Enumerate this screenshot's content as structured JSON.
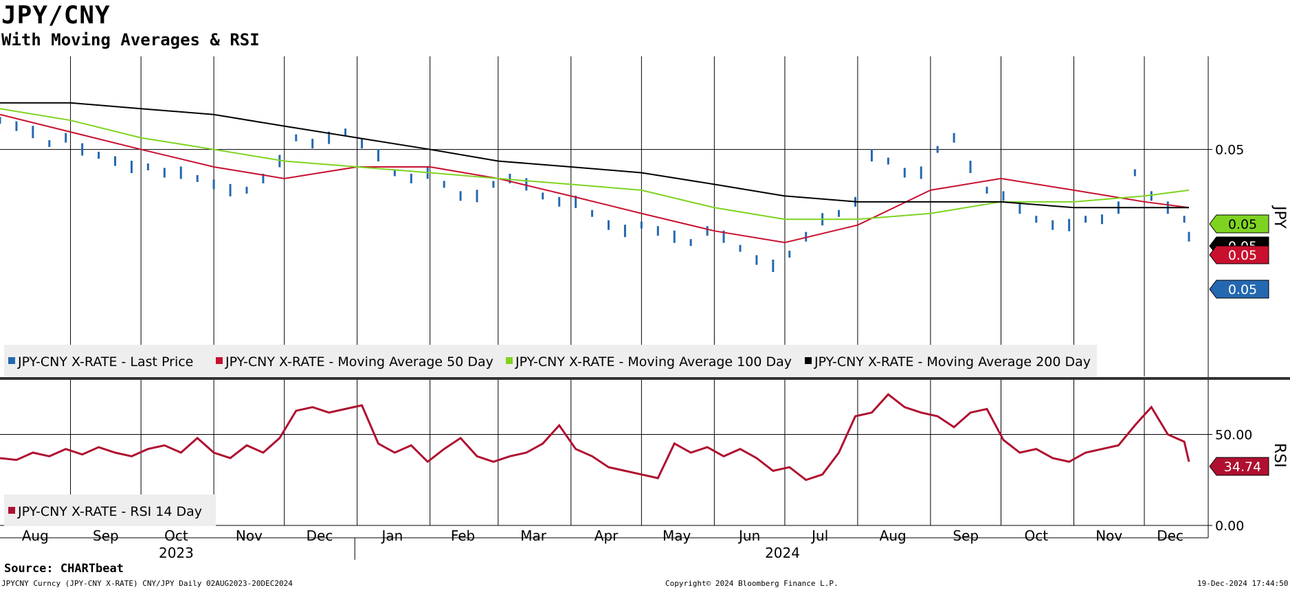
{
  "title": "JPY/CNY",
  "subtitle": "With Moving Averages & RSI",
  "source": "Source: CHARTbeat",
  "footer": {
    "ticker": "JPYCNY Curncy (JPY-CNY X-RATE) CNY/JPY  Daily 02AUG2023-20DEC2024",
    "copyright": "Copyright© 2024 Bloomberg Finance L.P.",
    "timestamp": "19-Dec-2024 17:44:50"
  },
  "colors": {
    "price": "#2468b0",
    "ma50": "#c8102e",
    "ma100": "#7ed321",
    "ma200": "#000000",
    "rsi": "#b01030",
    "legend_bg": "#eeeeee"
  },
  "chart_data": [
    {
      "type": "line",
      "panel": "price",
      "axis_label": "JPY",
      "y_tick_labels": [
        "0.05"
      ],
      "y_tick_positions_data": [
        0.0495
      ],
      "ylim": [
        0.0456,
        0.0511
      ],
      "grid": true,
      "legend_position": "bottom-left",
      "x_months": [
        "Aug",
        "Sep",
        "Oct",
        "Nov",
        "Dec",
        "Jan",
        "Feb",
        "Mar",
        "Apr",
        "May",
        "Jun",
        "Jul",
        "Aug",
        "Sep",
        "Oct",
        "Nov",
        "Dec"
      ],
      "x_years": [
        "2023",
        "2024"
      ],
      "series": [
        {
          "name": "JPY-CNY X-RATE - Last Price",
          "marker_label": "0.05",
          "style": "bar",
          "x": [
            "2023-08-02",
            "2023-08-09",
            "2023-08-16",
            "2023-08-23",
            "2023-08-30",
            "2023-09-06",
            "2023-09-13",
            "2023-09-20",
            "2023-09-27",
            "2023-10-04",
            "2023-10-11",
            "2023-10-18",
            "2023-10-25",
            "2023-11-01",
            "2023-11-08",
            "2023-11-15",
            "2023-11-22",
            "2023-11-29",
            "2023-12-06",
            "2023-12-13",
            "2023-12-20",
            "2023-12-27",
            "2024-01-03",
            "2024-01-10",
            "2024-01-17",
            "2024-01-24",
            "2024-01-31",
            "2024-02-07",
            "2024-02-14",
            "2024-02-21",
            "2024-02-28",
            "2024-03-06",
            "2024-03-13",
            "2024-03-20",
            "2024-03-27",
            "2024-04-03",
            "2024-04-10",
            "2024-04-17",
            "2024-04-24",
            "2024-05-01",
            "2024-05-08",
            "2024-05-15",
            "2024-05-22",
            "2024-05-29",
            "2024-06-05",
            "2024-06-12",
            "2024-06-19",
            "2024-06-26",
            "2024-07-03",
            "2024-07-10",
            "2024-07-17",
            "2024-07-24",
            "2024-07-31",
            "2024-08-07",
            "2024-08-14",
            "2024-08-21",
            "2024-08-28",
            "2024-09-04",
            "2024-09-11",
            "2024-09-18",
            "2024-09-25",
            "2024-10-02",
            "2024-10-09",
            "2024-10-16",
            "2024-10-23",
            "2024-10-30",
            "2024-11-06",
            "2024-11-13",
            "2024-11-20",
            "2024-11-27",
            "2024-12-04",
            "2024-12-11",
            "2024-12-18",
            "2024-12-20"
          ],
          "values": [
            0.05,
            0.0499,
            0.0498,
            0.0496,
            0.0497,
            0.0495,
            0.0494,
            0.0493,
            0.0492,
            0.0492,
            0.0491,
            0.0491,
            0.049,
            0.0489,
            0.0488,
            0.0488,
            0.049,
            0.0493,
            0.0497,
            0.0496,
            0.0497,
            0.0498,
            0.0496,
            0.0494,
            0.0491,
            0.049,
            0.0491,
            0.0489,
            0.0487,
            0.0487,
            0.0489,
            0.049,
            0.0489,
            0.0487,
            0.0486,
            0.0486,
            0.0484,
            0.0482,
            0.0481,
            0.0482,
            0.0481,
            0.048,
            0.0479,
            0.0481,
            0.048,
            0.0478,
            0.0476,
            0.0475,
            0.0477,
            0.048,
            0.0483,
            0.0484,
            0.0486,
            0.0494,
            0.0493,
            0.0491,
            0.0491,
            0.0495,
            0.0497,
            0.0492,
            0.0488,
            0.0487,
            0.0485,
            0.0483,
            0.0482,
            0.0482,
            0.0483,
            0.0483,
            0.0485,
            0.0491,
            0.0487,
            0.0485,
            0.0483,
            0.048
          ]
        },
        {
          "name": "JPY-CNY X-RATE - Moving Average 50 Day",
          "marker_label": "0.05",
          "x": [
            "2023-08-02",
            "2023-09-01",
            "2023-10-01",
            "2023-11-01",
            "2023-12-01",
            "2024-01-01",
            "2024-02-01",
            "2024-03-01",
            "2024-04-01",
            "2024-05-01",
            "2024-06-01",
            "2024-07-01",
            "2024-08-01",
            "2024-09-01",
            "2024-10-01",
            "2024-11-01",
            "2024-12-01",
            "2024-12-20"
          ],
          "values": [
            0.0501,
            0.0498,
            0.0495,
            0.0492,
            0.049,
            0.0492,
            0.0492,
            0.049,
            0.0487,
            0.0484,
            0.0481,
            0.0479,
            0.0482,
            0.0488,
            0.049,
            0.0488,
            0.0486,
            0.0485
          ]
        },
        {
          "name": "JPY-CNY X-RATE - Moving Average 100 Day",
          "marker_label": "0.05",
          "x": [
            "2023-08-02",
            "2023-09-01",
            "2023-10-01",
            "2023-11-01",
            "2023-12-01",
            "2024-01-01",
            "2024-02-01",
            "2024-03-01",
            "2024-04-01",
            "2024-05-01",
            "2024-06-01",
            "2024-07-01",
            "2024-08-01",
            "2024-09-01",
            "2024-10-01",
            "2024-11-01",
            "2024-12-01",
            "2024-12-20"
          ],
          "values": [
            0.0502,
            0.05,
            0.0497,
            0.0495,
            0.0493,
            0.0492,
            0.0491,
            0.049,
            0.0489,
            0.0488,
            0.0485,
            0.0483,
            0.0483,
            0.0484,
            0.0486,
            0.0486,
            0.0487,
            0.0488
          ]
        },
        {
          "name": "JPY-CNY X-RATE - Moving Average 200 Day",
          "marker_label": "0.05",
          "x": [
            "2023-08-02",
            "2023-09-01",
            "2023-10-01",
            "2023-11-01",
            "2023-12-01",
            "2024-01-01",
            "2024-02-01",
            "2024-03-01",
            "2024-04-01",
            "2024-05-01",
            "2024-06-01",
            "2024-07-01",
            "2024-08-01",
            "2024-09-01",
            "2024-10-01",
            "2024-11-01",
            "2024-12-01",
            "2024-12-20"
          ],
          "values": [
            0.0503,
            0.0503,
            0.0502,
            0.0501,
            0.0499,
            0.0497,
            0.0495,
            0.0493,
            0.0492,
            0.0491,
            0.0489,
            0.0487,
            0.0486,
            0.0486,
            0.0486,
            0.0485,
            0.0485,
            0.0485
          ]
        }
      ]
    },
    {
      "type": "line",
      "panel": "rsi",
      "axis_label": "RSI",
      "y_tick_labels": [
        "50.00",
        "0.00"
      ],
      "y_tick_values": [
        50,
        0
      ],
      "ylim": [
        0,
        80
      ],
      "grid": true,
      "legend_position": "bottom-left",
      "series": [
        {
          "name": "JPY-CNY X-RATE - RSI 14 Day",
          "marker_label": "34.74",
          "x": [
            "2023-08-02",
            "2023-08-09",
            "2023-08-16",
            "2023-08-23",
            "2023-08-30",
            "2023-09-06",
            "2023-09-13",
            "2023-09-20",
            "2023-09-27",
            "2023-10-04",
            "2023-10-11",
            "2023-10-18",
            "2023-10-25",
            "2023-11-01",
            "2023-11-08",
            "2023-11-15",
            "2023-11-22",
            "2023-11-29",
            "2023-12-06",
            "2023-12-13",
            "2023-12-20",
            "2023-12-27",
            "2024-01-03",
            "2024-01-10",
            "2024-01-17",
            "2024-01-24",
            "2024-01-31",
            "2024-02-07",
            "2024-02-14",
            "2024-02-21",
            "2024-02-28",
            "2024-03-06",
            "2024-03-13",
            "2024-03-20",
            "2024-03-27",
            "2024-04-03",
            "2024-04-10",
            "2024-04-17",
            "2024-04-24",
            "2024-05-01",
            "2024-05-08",
            "2024-05-15",
            "2024-05-22",
            "2024-05-29",
            "2024-06-05",
            "2024-06-12",
            "2024-06-19",
            "2024-06-26",
            "2024-07-03",
            "2024-07-10",
            "2024-07-17",
            "2024-07-24",
            "2024-07-31",
            "2024-08-07",
            "2024-08-14",
            "2024-08-21",
            "2024-08-28",
            "2024-09-04",
            "2024-09-11",
            "2024-09-18",
            "2024-09-25",
            "2024-10-02",
            "2024-10-09",
            "2024-10-16",
            "2024-10-23",
            "2024-10-30",
            "2024-11-06",
            "2024-11-13",
            "2024-11-20",
            "2024-11-27",
            "2024-12-04",
            "2024-12-11",
            "2024-12-18",
            "2024-12-20"
          ],
          "values": [
            37,
            36,
            40,
            38,
            42,
            39,
            43,
            40,
            38,
            42,
            44,
            40,
            48,
            40,
            37,
            44,
            40,
            48,
            63,
            65,
            62,
            64,
            66,
            45,
            40,
            44,
            35,
            42,
            48,
            38,
            35,
            38,
            40,
            45,
            55,
            42,
            38,
            32,
            30,
            28,
            26,
            45,
            40,
            43,
            38,
            42,
            37,
            30,
            32,
            25,
            28,
            40,
            60,
            62,
            72,
            65,
            62,
            60,
            54,
            62,
            64,
            47,
            40,
            42,
            37,
            35,
            40,
            42,
            44,
            55,
            65,
            50,
            46,
            35
          ]
        }
      ]
    }
  ]
}
